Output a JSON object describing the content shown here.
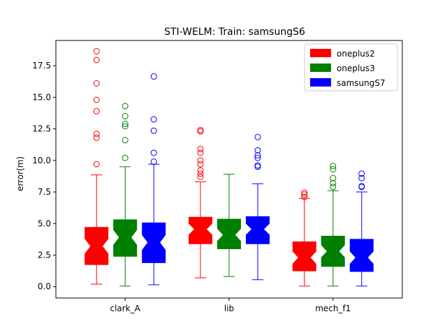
{
  "chart_data": {
    "type": "boxplot",
    "title": "STI-WELM: Train: samsungS6",
    "xlabel": "",
    "ylabel": "error(m)",
    "ylim": [
      -0.9,
      19.5
    ],
    "yticks": [
      "0.0",
      "2.5",
      "5.0",
      "7.5",
      "10.0",
      "12.5",
      "15.0",
      "17.5"
    ],
    "ytick_values": [
      0,
      2.5,
      5,
      7.5,
      10,
      12.5,
      15,
      17.5
    ],
    "categories": [
      "clark_A",
      "lib",
      "mech_f1"
    ],
    "notched": true,
    "grid": false,
    "legend_position": "top-right",
    "series": [
      {
        "name": "oneplus2",
        "color": "#ff0000",
        "boxes": [
          {
            "category": "clark_A",
            "whisker_low": 0.2,
            "q1": 1.75,
            "median": 3.2,
            "q3": 4.7,
            "whisker_high": 8.85,
            "notch_low": 2.6,
            "notch_high": 3.8,
            "outliers": [
              9.7,
              11.8,
              12.1,
              13.9,
              14.8,
              16.1,
              17.95,
              18.65
            ]
          },
          {
            "category": "lib",
            "whisker_low": 0.7,
            "q1": 3.4,
            "median": 4.55,
            "q3": 5.5,
            "whisker_high": 8.3,
            "notch_low": 4.1,
            "notch_high": 5.0,
            "outliers": [
              8.7,
              8.95,
              9.2,
              9.7,
              10.0,
              10.6,
              10.9,
              12.3,
              12.4
            ]
          },
          {
            "category": "mech_f1",
            "whisker_low": 0.05,
            "q1": 1.25,
            "median": 2.3,
            "q3": 3.55,
            "whisker_high": 7.0,
            "notch_low": 1.8,
            "notch_high": 2.8,
            "outliers": [
              7.1,
              7.3,
              7.45
            ]
          }
        ]
      },
      {
        "name": "oneplus3",
        "color": "#008000",
        "boxes": [
          {
            "category": "clark_A",
            "whisker_low": 0.05,
            "q1": 2.4,
            "median": 3.9,
            "q3": 5.3,
            "whisker_high": 9.5,
            "notch_low": 3.3,
            "notch_high": 4.5,
            "outliers": [
              10.2,
              11.6,
              12.7,
              12.9,
              13.5,
              14.3
            ]
          },
          {
            "category": "lib",
            "whisker_low": 0.8,
            "q1": 3.0,
            "median": 4.1,
            "q3": 5.35,
            "whisker_high": 8.9,
            "notch_low": 3.6,
            "notch_high": 4.6,
            "outliers": []
          },
          {
            "category": "mech_f1",
            "whisker_low": 0.05,
            "q1": 1.6,
            "median": 2.8,
            "q3": 4.0,
            "whisker_high": 7.6,
            "notch_low": 2.3,
            "notch_high": 3.3,
            "outliers": [
              7.9,
              8.2,
              8.6,
              9.3,
              9.55
            ]
          }
        ]
      },
      {
        "name": "samsungS7",
        "color": "#0000ff",
        "boxes": [
          {
            "category": "clark_A",
            "whisker_low": 0.15,
            "q1": 1.9,
            "median": 3.5,
            "q3": 5.05,
            "whisker_high": 9.7,
            "notch_low": 2.9,
            "notch_high": 4.1,
            "outliers": [
              9.9,
              10.6,
              12.35,
              13.25,
              16.65
            ]
          },
          {
            "category": "lib",
            "whisker_low": 0.55,
            "q1": 3.4,
            "median": 4.55,
            "q3": 5.55,
            "whisker_high": 8.15,
            "notch_low": 4.1,
            "notch_high": 5.0,
            "outliers": [
              9.5,
              9.6,
              10.2,
              10.4,
              10.8,
              11.85
            ]
          },
          {
            "category": "mech_f1",
            "whisker_low": 0.05,
            "q1": 1.2,
            "median": 2.3,
            "q3": 3.75,
            "whisker_high": 7.5,
            "notch_low": 1.8,
            "notch_high": 2.8,
            "outliers": [
              7.9,
              7.95,
              8.6,
              8.95
            ]
          }
        ]
      }
    ]
  }
}
